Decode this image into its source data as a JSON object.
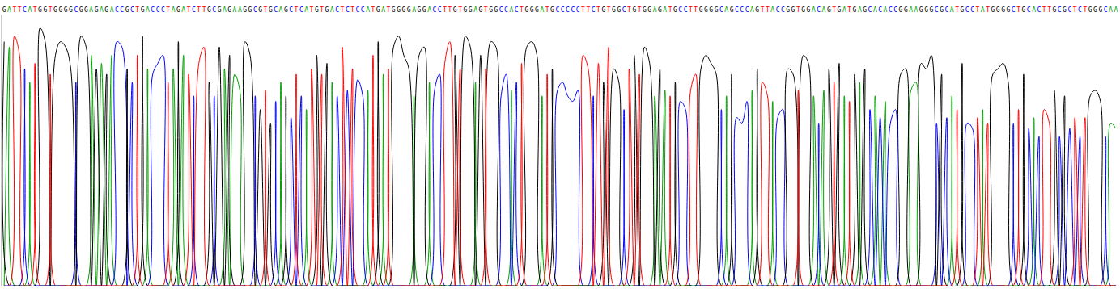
{
  "chart_data": {
    "type": "line",
    "categories": [
      "G",
      "A",
      "T",
      "T",
      "C",
      "A",
      "T",
      "G",
      "G",
      "T",
      "G",
      "G",
      "G",
      "G",
      "C",
      "G",
      "G",
      "A",
      "G",
      "A",
      "G",
      "A",
      "C",
      "C",
      "G",
      "C",
      "T",
      "G",
      "A",
      "C",
      "C",
      "C",
      "T",
      "A",
      "G",
      "A",
      "T",
      "C",
      "T",
      "T",
      "G",
      "C",
      "G",
      "A",
      "G",
      "A",
      "A",
      "G",
      "G",
      "C",
      "G",
      "T",
      "G",
      "C",
      "A",
      "G",
      "C",
      "T",
      "C",
      "A",
      "T",
      "G",
      "T",
      "G",
      "A",
      "C",
      "T",
      "C",
      "T",
      "C",
      "C",
      "A",
      "T",
      "G",
      "A",
      "T",
      "G",
      "G",
      "G",
      "G",
      "A",
      "G",
      "G",
      "A",
      "C",
      "C",
      "T",
      "T",
      "G",
      "T",
      "G",
      "G",
      "A",
      "G",
      "T",
      "G",
      "G",
      "C",
      "C",
      "A",
      "C",
      "T",
      "G",
      "G",
      "G",
      "A",
      "T",
      "G",
      "C",
      "C",
      "C",
      "C",
      "C",
      "T",
      "T",
      "C",
      "T",
      "G",
      "T",
      "G",
      "G",
      "C",
      "T",
      "G",
      "T",
      "G",
      "G",
      "A",
      "G",
      "A",
      "T",
      "G",
      "C",
      "C",
      "T",
      "T",
      "G",
      "G",
      "G",
      "G",
      "C",
      "A",
      "G",
      "C",
      "C",
      "C",
      "A",
      "G",
      "T",
      "T",
      "A",
      "C",
      "C",
      "G",
      "G",
      "T",
      "G",
      "G",
      "A",
      "C",
      "A",
      "G",
      "T",
      "G",
      "A",
      "T",
      "G",
      "A",
      "G",
      "C",
      "A",
      "C",
      "A",
      "C",
      "C",
      "G",
      "G",
      "A",
      "A",
      "G",
      "G",
      "G",
      "C",
      "G",
      "C",
      "A",
      "T",
      "G",
      "C",
      "C",
      "T",
      "A",
      "T",
      "G",
      "G",
      "G",
      "G",
      "C",
      "T",
      "G",
      "C",
      "A",
      "C",
      "T",
      "T",
      "G",
      "C",
      "G",
      "C",
      "T",
      "C",
      "T",
      "G",
      "G",
      "G",
      "C",
      "A",
      "A"
    ],
    "series": [
      {
        "color": "#00a000",
        "values": [
          0,
          88,
          0,
          0,
          0,
          75,
          0,
          0,
          0,
          0,
          0,
          0,
          0,
          0,
          0,
          0,
          0,
          85,
          0,
          82,
          0,
          85,
          0,
          0,
          0,
          0,
          0,
          0,
          80,
          0,
          0,
          0,
          0,
          80,
          0,
          85,
          0,
          0,
          0,
          0,
          0,
          0,
          0,
          80,
          0,
          78,
          72,
          0,
          0,
          0,
          0,
          0,
          0,
          0,
          75,
          0,
          0,
          0,
          0,
          65,
          0,
          0,
          0,
          0,
          75,
          0,
          0,
          0,
          0,
          0,
          0,
          72,
          0,
          0,
          78,
          0,
          0,
          0,
          0,
          0,
          70,
          0,
          0,
          75,
          0,
          0,
          0,
          0,
          0,
          0,
          0,
          0,
          75,
          0,
          0,
          0,
          0,
          0,
          0,
          72,
          0,
          0,
          0,
          0,
          0,
          70,
          0,
          0,
          0,
          0,
          0,
          0,
          0,
          0,
          0,
          0,
          0,
          0,
          0,
          0,
          0,
          0,
          0,
          0,
          0,
          0,
          0,
          70,
          0,
          72,
          0,
          0,
          0,
          0,
          0,
          0,
          0,
          0,
          0,
          0,
          0,
          70,
          0,
          0,
          0,
          0,
          72,
          0,
          0,
          0,
          68,
          0,
          0,
          0,
          0,
          0,
          0,
          0,
          70,
          0,
          72,
          0,
          0,
          0,
          70,
          0,
          0,
          75,
          0,
          0,
          70,
          0,
          68,
          0,
          0,
          0,
          0,
          72,
          75,
          0,
          0,
          0,
          0,
          0,
          0,
          70,
          0,
          0,
          0,
          0,
          0,
          65,
          0,
          0,
          0,
          0,
          0,
          0,
          0,
          0,
          0,
          62,
          0,
          0,
          0,
          0,
          0,
          0,
          0,
          0,
          0,
          0,
          0,
          0,
          0,
          0,
          60,
          58
        ]
      },
      {
        "color": "#0000ff",
        "values": [
          0,
          0,
          0,
          0,
          80,
          0,
          0,
          0,
          0,
          0,
          0,
          0,
          0,
          0,
          75,
          0,
          0,
          0,
          0,
          0,
          0,
          0,
          90,
          88,
          0,
          75,
          0,
          0,
          0,
          78,
          82,
          85,
          0,
          0,
          0,
          0,
          0,
          70,
          0,
          0,
          0,
          70,
          0,
          0,
          0,
          0,
          0,
          0,
          0,
          70,
          0,
          0,
          0,
          68,
          0,
          0,
          62,
          0,
          70,
          0,
          0,
          0,
          0,
          0,
          0,
          70,
          0,
          72,
          0,
          76,
          70,
          0,
          0,
          0,
          0,
          0,
          0,
          0,
          0,
          0,
          0,
          0,
          0,
          0,
          72,
          78,
          0,
          0,
          0,
          0,
          0,
          0,
          0,
          0,
          0,
          0,
          0,
          70,
          78,
          0,
          75,
          0,
          0,
          0,
          0,
          0,
          0,
          0,
          72,
          75,
          70,
          68,
          72,
          0,
          0,
          70,
          0,
          0,
          0,
          0,
          0,
          65,
          0,
          0,
          0,
          0,
          0,
          0,
          0,
          0,
          0,
          0,
          68,
          65,
          0,
          0,
          0,
          0,
          0,
          0,
          65,
          0,
          0,
          62,
          60,
          68,
          0,
          0,
          0,
          0,
          0,
          62,
          65,
          0,
          0,
          0,
          0,
          0,
          0,
          60,
          0,
          0,
          0,
          0,
          0,
          0,
          0,
          0,
          0,
          65,
          0,
          62,
          0,
          60,
          65,
          0,
          0,
          0,
          0,
          0,
          0,
          0,
          60,
          0,
          62,
          0,
          0,
          0,
          60,
          58,
          0,
          0,
          0,
          0,
          0,
          0,
          0,
          60,
          0,
          0,
          58,
          0,
          55,
          0,
          0,
          0,
          55,
          0,
          58,
          0,
          55,
          0,
          0,
          0,
          0,
          55,
          0,
          0
        ]
      },
      {
        "color": "#000000",
        "values": [
          90,
          0,
          0,
          0,
          0,
          0,
          0,
          95,
          90,
          0,
          85,
          90,
          88,
          80,
          0,
          92,
          88,
          0,
          80,
          0,
          78,
          0,
          0,
          0,
          80,
          0,
          0,
          92,
          0,
          0,
          0,
          0,
          0,
          0,
          90,
          0,
          0,
          0,
          0,
          0,
          75,
          0,
          88,
          0,
          85,
          0,
          0,
          90,
          85,
          0,
          65,
          0,
          60,
          0,
          0,
          70,
          0,
          0,
          0,
          0,
          0,
          85,
          0,
          82,
          0,
          0,
          0,
          0,
          0,
          0,
          0,
          0,
          0,
          90,
          0,
          0,
          88,
          92,
          85,
          80,
          0,
          85,
          88,
          0,
          0,
          0,
          0,
          0,
          85,
          0,
          92,
          88,
          0,
          85,
          0,
          90,
          88,
          0,
          0,
          0,
          0,
          0,
          88,
          90,
          85,
          0,
          0,
          80,
          0,
          0,
          0,
          0,
          0,
          0,
          0,
          0,
          0,
          75,
          0,
          80,
          75,
          0,
          0,
          85,
          0,
          88,
          82,
          0,
          80,
          0,
          0,
          75,
          0,
          0,
          0,
          0,
          80,
          85,
          82,
          78,
          0,
          0,
          78,
          0,
          0,
          0,
          0,
          80,
          0,
          0,
          0,
          0,
          0,
          80,
          78,
          0,
          85,
          82,
          0,
          0,
          0,
          80,
          0,
          82,
          0,
          0,
          78,
          0,
          80,
          0,
          0,
          0,
          0,
          0,
          0,
          78,
          80,
          0,
          0,
          82,
          80,
          85,
          0,
          78,
          0,
          0,
          0,
          82,
          0,
          0,
          0,
          0,
          0,
          78,
          80,
          82,
          75,
          0,
          0,
          78,
          0,
          0,
          0,
          0,
          0,
          72,
          0,
          70,
          0,
          0,
          0,
          0,
          70,
          72,
          68,
          0,
          0,
          0
        ]
      },
      {
        "color": "#ff0000",
        "values": [
          0,
          0,
          92,
          85,
          0,
          0,
          82,
          0,
          0,
          78,
          0,
          0,
          0,
          0,
          0,
          0,
          0,
          0,
          0,
          0,
          0,
          0,
          0,
          0,
          0,
          0,
          85,
          0,
          0,
          0,
          0,
          0,
          75,
          0,
          0,
          0,
          78,
          0,
          82,
          88,
          0,
          0,
          0,
          0,
          0,
          0,
          0,
          0,
          0,
          0,
          0,
          72,
          0,
          0,
          0,
          0,
          0,
          78,
          0,
          0,
          80,
          0,
          78,
          0,
          0,
          0,
          88,
          0,
          80,
          0,
          0,
          0,
          85,
          0,
          0,
          80,
          0,
          0,
          0,
          0,
          0,
          0,
          0,
          0,
          0,
          0,
          82,
          90,
          0,
          80,
          0,
          0,
          0,
          0,
          80,
          0,
          0,
          0,
          0,
          0,
          0,
          82,
          0,
          0,
          0,
          0,
          78,
          0,
          0,
          0,
          0,
          0,
          0,
          85,
          80,
          0,
          82,
          0,
          88,
          0,
          0,
          0,
          80,
          0,
          78,
          0,
          0,
          0,
          0,
          0,
          70,
          0,
          0,
          0,
          72,
          78,
          0,
          0,
          0,
          0,
          0,
          0,
          0,
          0,
          0,
          0,
          0,
          0,
          75,
          70,
          0,
          0,
          0,
          0,
          0,
          72,
          0,
          0,
          0,
          0,
          0,
          0,
          75,
          0,
          0,
          68,
          0,
          0,
          0,
          0,
          0,
          0,
          0,
          0,
          0,
          0,
          0,
          0,
          0,
          0,
          0,
          0,
          0,
          0,
          0,
          0,
          65,
          0,
          0,
          0,
          62,
          0,
          60,
          0,
          0,
          0,
          0,
          0,
          65,
          0,
          0,
          0,
          0,
          65,
          60,
          0,
          0,
          0,
          0,
          62,
          0,
          62,
          0,
          0,
          0,
          0,
          0,
          0
        ]
      }
    ],
    "ylim": [
      0,
      100
    ],
    "grid": false,
    "tick_labels": "x"
  }
}
